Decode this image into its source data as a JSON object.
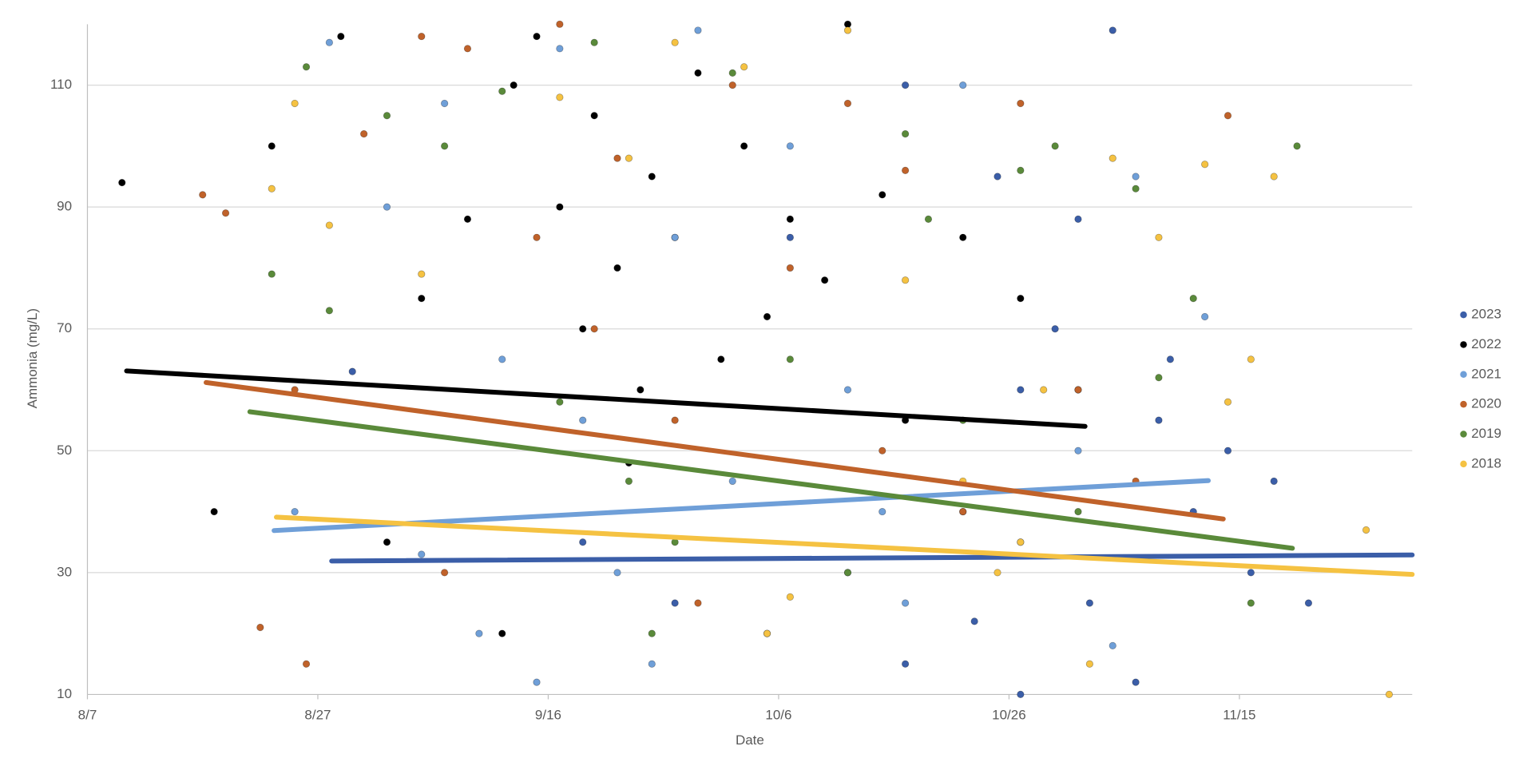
{
  "chart_data": {
    "type": "scatter",
    "x_label": "Date",
    "y_label": "Ammonia (mg/L)",
    "xlim": [
      219,
      334
    ],
    "xticks": [
      {
        "value": 219,
        "label": "8/7"
      },
      {
        "value": 239,
        "label": "8/27"
      },
      {
        "value": 259,
        "label": "9/16"
      },
      {
        "value": 279,
        "label": "10/6"
      },
      {
        "value": 299,
        "label": "10/26"
      },
      {
        "value": 319,
        "label": "11/15"
      }
    ],
    "ylim": [
      10,
      120
    ],
    "yticks": [
      10,
      30,
      50,
      70,
      90,
      110
    ],
    "grid": true,
    "legend": "right",
    "series": [
      {
        "name": "2023",
        "color": "#3b5ea8",
        "x": [
          242,
          262,
          270,
          278,
          285,
          290,
          295,
          298,
          300,
          303,
          306,
          308,
          310,
          312,
          315,
          318,
          320,
          322,
          325,
          300,
          290,
          305,
          280,
          313,
          296
        ],
        "values": [
          63,
          35,
          25,
          20,
          30,
          15,
          40,
          95,
          60,
          70,
          25,
          119,
          12,
          55,
          40,
          50,
          30,
          45,
          25,
          10,
          110,
          88,
          85,
          65,
          22
        ],
        "trendline": {
          "x": [
            240.2,
            334
          ],
          "y": [
            31.9,
            32.9
          ]
        }
      },
      {
        "name": "2022",
        "color": "#000000",
        "x": [
          222,
          235,
          241,
          248,
          252,
          256,
          258,
          260,
          262,
          263,
          265,
          267,
          268,
          270,
          272,
          274,
          276,
          278,
          280,
          283,
          285,
          288,
          290,
          295,
          300,
          305,
          230,
          245,
          255,
          266
        ],
        "values": [
          94,
          100,
          118,
          75,
          88,
          110,
          118,
          90,
          70,
          105,
          80,
          60,
          95,
          85,
          112,
          65,
          100,
          72,
          88,
          78,
          120,
          92,
          55,
          85,
          75,
          60,
          40,
          35,
          20,
          48
        ],
        "trendline": {
          "x": [
            222.4,
            305.6
          ],
          "y": [
            63.1,
            54.0
          ]
        }
      },
      {
        "name": "2021",
        "color": "#6f9fd8",
        "x": [
          237,
          240,
          245,
          250,
          253,
          258,
          260,
          262,
          265,
          268,
          272,
          275,
          280,
          285,
          290,
          295,
          300,
          305,
          310,
          316,
          255,
          248,
          270,
          288,
          308
        ],
        "values": [
          40,
          117,
          90,
          107,
          20,
          12,
          116,
          55,
          30,
          15,
          119,
          45,
          100,
          60,
          25,
          110,
          35,
          50,
          95,
          72,
          65,
          33,
          85,
          40,
          18
        ],
        "trendline": {
          "x": [
            235.2,
            316.3
          ],
          "y": [
            36.9,
            45.1
          ]
        }
      },
      {
        "name": "2020",
        "color": "#c0622a",
        "x": [
          229,
          231,
          234,
          238,
          243,
          248,
          252,
          258,
          260,
          263,
          265,
          270,
          275,
          280,
          285,
          290,
          295,
          300,
          305,
          310,
          318,
          237,
          250,
          272,
          288
        ],
        "values": [
          92,
          89,
          21,
          15,
          102,
          118,
          116,
          85,
          120,
          70,
          98,
          55,
          110,
          80,
          107,
          96,
          40,
          107,
          60,
          45,
          105,
          60,
          30,
          25,
          50
        ],
        "trendline": {
          "x": [
            229.3,
            317.6
          ],
          "y": [
            61.2,
            38.8
          ]
        }
      },
      {
        "name": "2019",
        "color": "#5a8a3a",
        "x": [
          235,
          238,
          240,
          245,
          250,
          255,
          260,
          263,
          266,
          270,
          275,
          280,
          285,
          290,
          295,
          300,
          303,
          305,
          310,
          315,
          320,
          324,
          268,
          292,
          312
        ],
        "values": [
          79,
          113,
          73,
          105,
          100,
          109,
          58,
          117,
          45,
          35,
          112,
          65,
          30,
          102,
          55,
          96,
          100,
          40,
          93,
          75,
          25,
          100,
          20,
          88,
          62
        ],
        "trendline": {
          "x": [
            233.1,
            323.6
          ],
          "y": [
            56.4,
            34.0
          ]
        }
      },
      {
        "name": "2018",
        "color": "#f5c242",
        "x": [
          235,
          237,
          240,
          248,
          260,
          266,
          270,
          276,
          280,
          285,
          290,
          295,
          298,
          302,
          306,
          308,
          312,
          316,
          318,
          320,
          322,
          330,
          332,
          278,
          300
        ],
        "values": [
          93,
          107,
          87,
          79,
          108,
          98,
          117,
          113,
          26,
          119,
          78,
          45,
          30,
          60,
          15,
          98,
          85,
          97,
          58,
          65,
          95,
          37,
          10,
          20,
          35
        ],
        "trendline": {
          "x": [
            235.4,
            334
          ],
          "y": [
            39.1,
            29.7
          ]
        }
      }
    ]
  }
}
